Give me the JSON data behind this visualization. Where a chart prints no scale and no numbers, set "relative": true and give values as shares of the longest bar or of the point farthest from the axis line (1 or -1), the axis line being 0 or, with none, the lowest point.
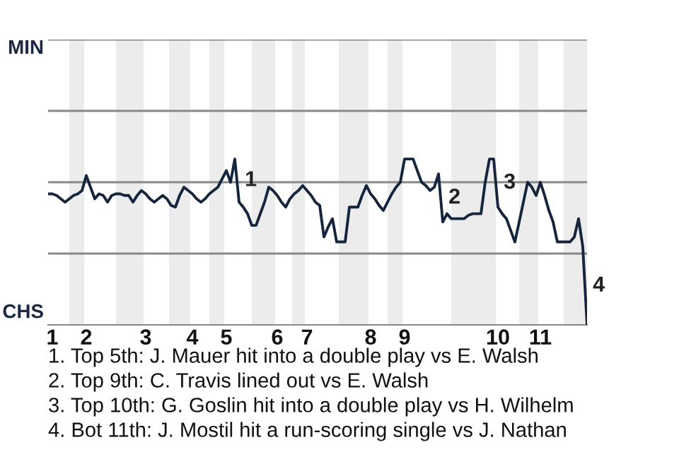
{
  "chart_data": {
    "type": "line",
    "relative": true,
    "categories": [
      null,
      "1",
      null,
      null,
      null,
      null,
      null,
      null,
      null,
      "2",
      null,
      null,
      null,
      null,
      null,
      null,
      null,
      null,
      null,
      null,
      null,
      null,
      null,
      "3",
      null,
      null,
      null,
      null,
      null,
      null,
      null,
      null,
      null,
      null,
      "4",
      null,
      null,
      null,
      null,
      null,
      null,
      null,
      "5",
      null,
      null,
      null,
      null,
      null,
      null,
      null,
      null,
      null,
      null,
      null,
      "6",
      null,
      null,
      null,
      null,
      null,
      null,
      "7",
      null,
      null,
      null,
      null,
      null,
      null,
      null,
      null,
      null,
      null,
      null,
      null,
      null,
      null,
      "8",
      null,
      null,
      null,
      null,
      null,
      null,
      null,
      "9",
      null,
      null,
      null,
      null,
      null,
      null,
      null,
      null,
      null,
      null,
      null,
      null,
      null,
      null,
      null,
      null,
      null,
      null,
      null,
      null,
      null,
      "10",
      null,
      null,
      null,
      null,
      null,
      null,
      null,
      null,
      null,
      "11",
      null,
      null,
      null,
      null,
      null,
      null,
      null,
      null,
      null,
      null,
      null
    ],
    "series": [
      {
        "color": "#14253d",
        "values": [
          0.79,
          0.79,
          0.78,
          0.76,
          0.74,
          0.76,
          0.78,
          0.79,
          0.81,
          0.9,
          0.83,
          0.76,
          0.79,
          0.78,
          0.74,
          0.78,
          0.79,
          0.79,
          0.78,
          0.78,
          0.74,
          0.78,
          0.81,
          0.79,
          0.76,
          0.74,
          0.76,
          0.78,
          0.76,
          0.72,
          0.71,
          0.78,
          0.83,
          0.81,
          0.79,
          0.76,
          0.74,
          0.76,
          0.79,
          0.81,
          0.83,
          0.88,
          0.93,
          0.86,
          1,
          0.74,
          0.71,
          0.67,
          0.6,
          0.6,
          0.67,
          0.74,
          0.83,
          0.81,
          0.78,
          0.74,
          0.71,
          0.76,
          0.79,
          0.81,
          0.84,
          0.81,
          0.78,
          0.74,
          0.72,
          0.53,
          0.59,
          0.64,
          0.5,
          0.5,
          0.5,
          0.71,
          0.71,
          0.71,
          0.78,
          0.84,
          0.79,
          0.76,
          0.72,
          0.69,
          0.74,
          0.79,
          0.83,
          0.86,
          1,
          1,
          1,
          0.93,
          0.86,
          0.84,
          0.81,
          0.83,
          0.91,
          0.62,
          0.67,
          0.64,
          0.64,
          0.64,
          0.64,
          0.66,
          0.67,
          0.67,
          0.67,
          0.86,
          1,
          1,
          0.71,
          0.67,
          0.64,
          0.57,
          0.5,
          0.62,
          0.74,
          0.86,
          0.83,
          0.78,
          0.86,
          0.78,
          0.69,
          0.62,
          0.5,
          0.5,
          0.5,
          0.5,
          0.53,
          0.64,
          0.47,
          0
        ]
      }
    ],
    "line_style": "solid",
    "ref_lines": [
      {
        "axis": "y",
        "value": 0.43,
        "color": "#888888"
      },
      {
        "axis": "y",
        "value": 0.86,
        "color": "#888888"
      },
      {
        "axis": "y",
        "value": 1.29,
        "color": "#888888"
      },
      {
        "axis": "y",
        "value": 1.72,
        "color": "#888888"
      }
    ],
    "annotations": [
      {
        "text": "1"
      },
      {
        "text": "2"
      },
      {
        "text": "3"
      },
      {
        "text": "4"
      },
      "MIN",
      "CHS",
      "1. Top 5th: J. Mauer hit into a double play vs E. Walsh",
      "2. Top 9th: C. Travis lined out vs E. Walsh",
      "3. Top 10th: G. Goslin hit into a double play vs H. Wilhelm",
      "4. Bot 11th: J. Mostil hit a run-scoring single vs J. Nathan"
    ]
  }
}
